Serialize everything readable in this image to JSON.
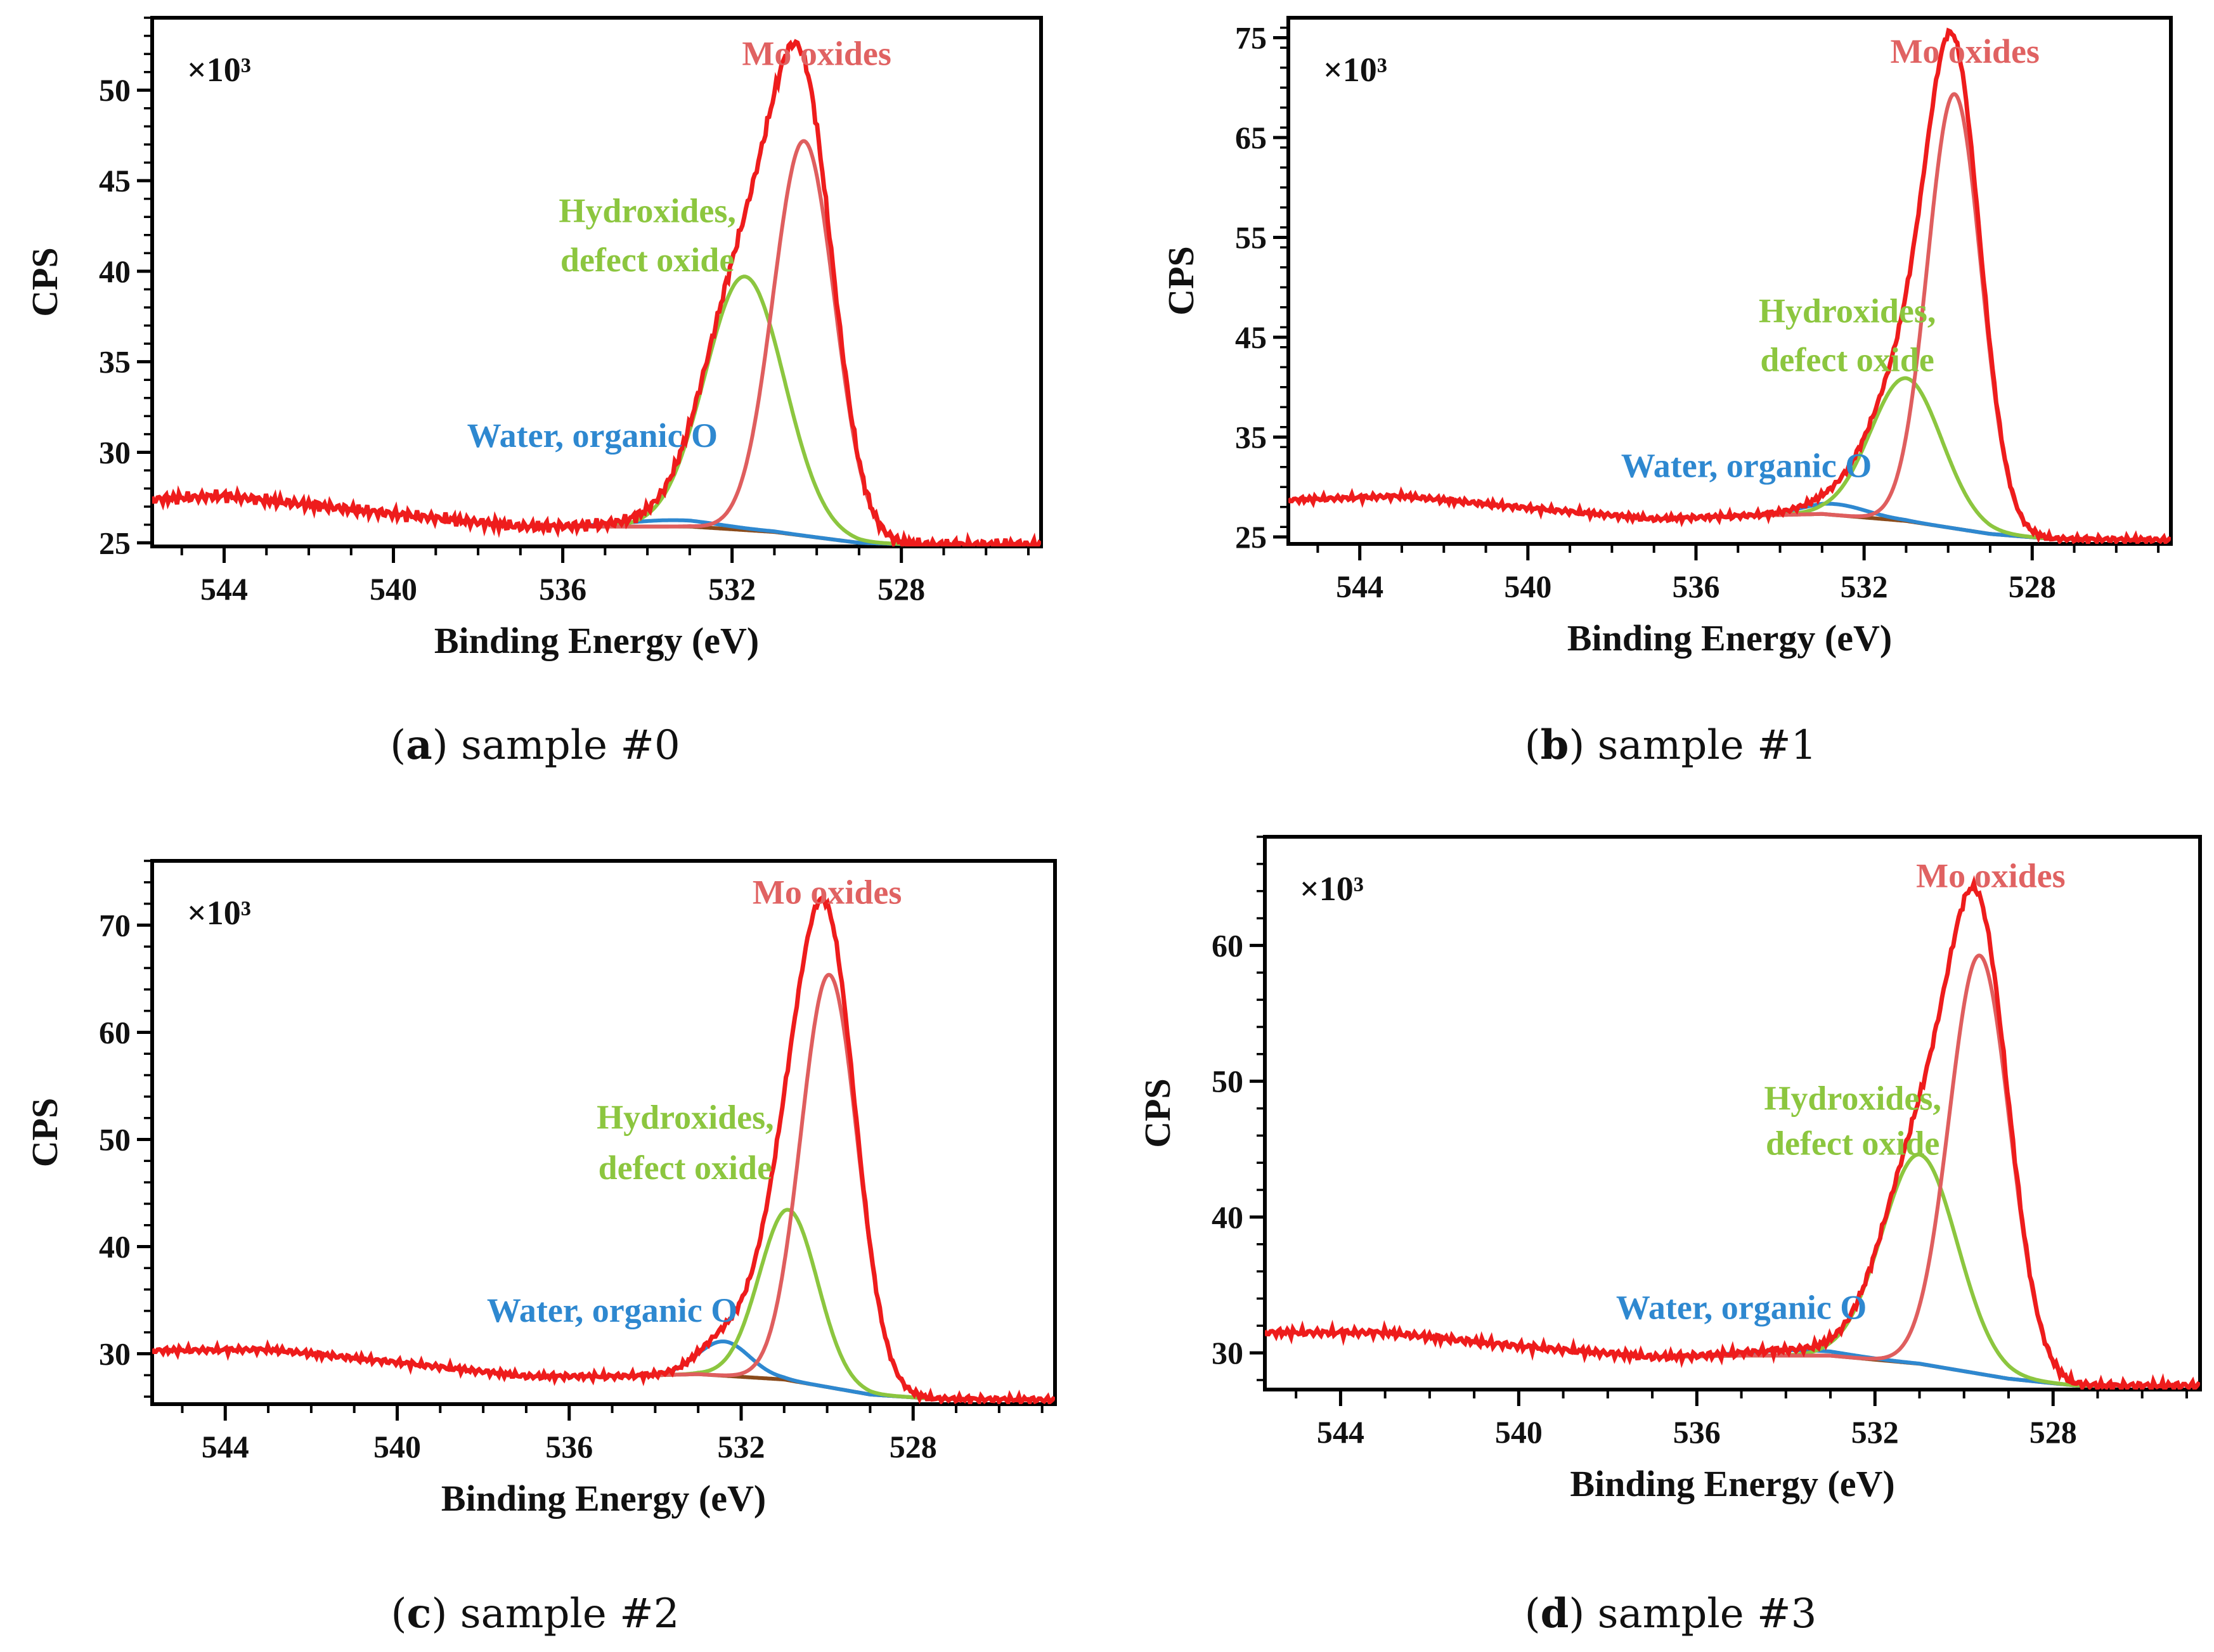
{
  "figure": {
    "x_axis_label": "Binding Energy (eV)",
    "y_axis_label": "CPS",
    "multiplier": "×10³",
    "colors": {
      "envelope": "#ee1c1c",
      "mo_oxides": "#df5e5e",
      "hydroxides": "#8cc63f",
      "water": "#2e88d0",
      "background": "#8a4a1a",
      "mo_label": "#e06262",
      "hyd_label": "#8cc63f",
      "water_label": "#2e88d0"
    }
  },
  "chart_data": [
    {
      "type": "line",
      "caption_letter": "a",
      "caption_text": "sample #0",
      "xlabel": "Binding Energy (eV)",
      "ylabel": "CPS",
      "multiplier": "×10³",
      "xlim": [
        545.7,
        524.7
      ],
      "ylim": [
        24.8,
        54.0
      ],
      "x_ticks": [
        544,
        540,
        536,
        532,
        528
      ],
      "y_ticks": [
        25,
        30,
        35,
        40,
        45,
        50
      ],
      "baseline": [
        [
          545.7,
          27.4
        ],
        [
          544,
          27.6
        ],
        [
          540,
          26.6
        ],
        [
          537,
          25.9
        ],
        [
          535,
          25.9
        ],
        [
          533,
          25.9
        ],
        [
          531,
          25.6
        ],
        [
          529,
          25.0
        ],
        [
          527.5,
          24.9
        ],
        [
          524.7,
          24.9
        ]
      ],
      "components": [
        {
          "name": "Mo oxides",
          "center": 530.3,
          "height": 21.8,
          "fwhm": 1.7
        },
        {
          "name": "Hydroxides, defect oxide",
          "center": 531.7,
          "height": 14.0,
          "fwhm": 2.2
        },
        {
          "name": "Water, organic O",
          "center": 533.4,
          "height": 0.35,
          "fwhm": 2.6
        }
      ],
      "labels": [
        {
          "text": "Mo oxides",
          "x": 530.0,
          "y": 51.4
        },
        {
          "text": "Hydroxides,",
          "x": 534.0,
          "y": 42.7
        },
        {
          "text": "defect oxide",
          "x": 534.0,
          "y": 40.0
        },
        {
          "text": "Water, organic O",
          "x": 535.3,
          "y": 30.3
        }
      ]
    },
    {
      "type": "line",
      "caption_letter": "b",
      "caption_text": "sample #1",
      "xlabel": "Binding Energy (eV)",
      "ylabel": "CPS",
      "multiplier": "×10³",
      "xlim": [
        545.7,
        524.7
      ],
      "ylim": [
        24.3,
        77.0
      ],
      "x_ticks": [
        544,
        540,
        536,
        532,
        528
      ],
      "y_ticks": [
        25,
        35,
        45,
        55,
        65,
        75
      ],
      "baseline": [
        [
          545.7,
          28.7
        ],
        [
          543,
          29.1
        ],
        [
          540,
          27.9
        ],
        [
          537,
          26.8
        ],
        [
          535,
          27.1
        ],
        [
          533,
          27.3
        ],
        [
          531,
          26.6
        ],
        [
          529,
          25.3
        ],
        [
          527.5,
          24.8
        ],
        [
          524.7,
          24.7
        ]
      ],
      "components": [
        {
          "name": "Mo oxides",
          "center": 529.85,
          "height": 43.5,
          "fwhm": 1.5
        },
        {
          "name": "Hydroxides, defect oxide",
          "center": 531.0,
          "height": 14.3,
          "fwhm": 2.0
        },
        {
          "name": "Water, organic O",
          "center": 532.7,
          "height": 1.1,
          "fwhm": 1.8
        }
      ],
      "labels": [
        {
          "text": "Mo oxides",
          "x": 529.6,
          "y": 72.5
        },
        {
          "text": "Hydroxides,",
          "x": 532.4,
          "y": 46.5
        },
        {
          "text": "defect oxide",
          "x": 532.4,
          "y": 41.6
        },
        {
          "text": "Water, organic O",
          "x": 534.8,
          "y": 31.0
        }
      ]
    },
    {
      "type": "line",
      "caption_letter": "c",
      "caption_text": "sample #2",
      "xlabel": "Binding Energy (eV)",
      "ylabel": "CPS",
      "multiplier": "×10³",
      "xlim": [
        545.7,
        524.7
      ],
      "ylim": [
        25.3,
        76.0
      ],
      "x_ticks": [
        544,
        540,
        536,
        532,
        528
      ],
      "y_ticks": [
        30,
        40,
        50,
        60,
        70
      ],
      "baseline": [
        [
          545.7,
          30.3
        ],
        [
          543,
          30.4
        ],
        [
          540,
          29.2
        ],
        [
          537,
          27.9
        ],
        [
          535,
          27.9
        ],
        [
          533,
          28.1
        ],
        [
          531,
          27.6
        ],
        [
          529,
          26.2
        ],
        [
          527.5,
          25.8
        ],
        [
          524.7,
          25.7
        ]
      ],
      "components": [
        {
          "name": "Mo oxides",
          "center": 529.95,
          "height": 38.5,
          "fwhm": 1.55
        },
        {
          "name": "Hydroxides, defect oxide",
          "center": 530.9,
          "height": 15.9,
          "fwhm": 1.6
        },
        {
          "name": "Water, organic O",
          "center": 532.4,
          "height": 3.2,
          "fwhm": 1.4
        }
      ],
      "labels": [
        {
          "text": "Mo oxides",
          "x": 530.0,
          "y": 72.0
        },
        {
          "text": "Hydroxides,",
          "x": 533.3,
          "y": 51.0
        },
        {
          "text": "defect oxide",
          "x": 533.3,
          "y": 46.3
        },
        {
          "text": "Water, organic O",
          "x": 535.0,
          "y": 33.0
        }
      ]
    },
    {
      "type": "line",
      "caption_letter": "d",
      "caption_text": "sample #3",
      "xlabel": "Binding Energy (eV)",
      "ylabel": "CPS",
      "multiplier": "×10³",
      "xlim": [
        545.7,
        524.7
      ],
      "ylim": [
        27.3,
        68.0
      ],
      "x_ticks": [
        544,
        540,
        536,
        532,
        528
      ],
      "y_ticks": [
        30,
        40,
        50,
        60
      ],
      "baseline": [
        [
          545.7,
          31.5
        ],
        [
          543,
          31.5
        ],
        [
          540,
          30.5
        ],
        [
          537,
          29.7
        ],
        [
          535,
          29.8
        ],
        [
          533,
          29.8
        ],
        [
          531,
          29.2
        ],
        [
          529,
          28.1
        ],
        [
          527.5,
          27.6
        ],
        [
          524.7,
          27.6
        ]
      ],
      "components": [
        {
          "name": "Mo oxides",
          "center": 529.65,
          "height": 30.8,
          "fwhm": 1.6
        },
        {
          "name": "Hydroxides, defect oxide",
          "center": 531.0,
          "height": 15.4,
          "fwhm": 2.0
        },
        {
          "name": "Water, organic O",
          "center": 533.8,
          "height": 0.4,
          "fwhm": 2.5
        }
      ],
      "labels": [
        {
          "text": "Mo oxides",
          "x": 529.4,
          "y": 64.3
        },
        {
          "text": "Hydroxides,",
          "x": 532.5,
          "y": 47.9
        },
        {
          "text": "defect oxide",
          "x": 532.5,
          "y": 44.6
        },
        {
          "text": "Water, organic O",
          "x": 535.0,
          "y": 32.5
        }
      ]
    }
  ]
}
